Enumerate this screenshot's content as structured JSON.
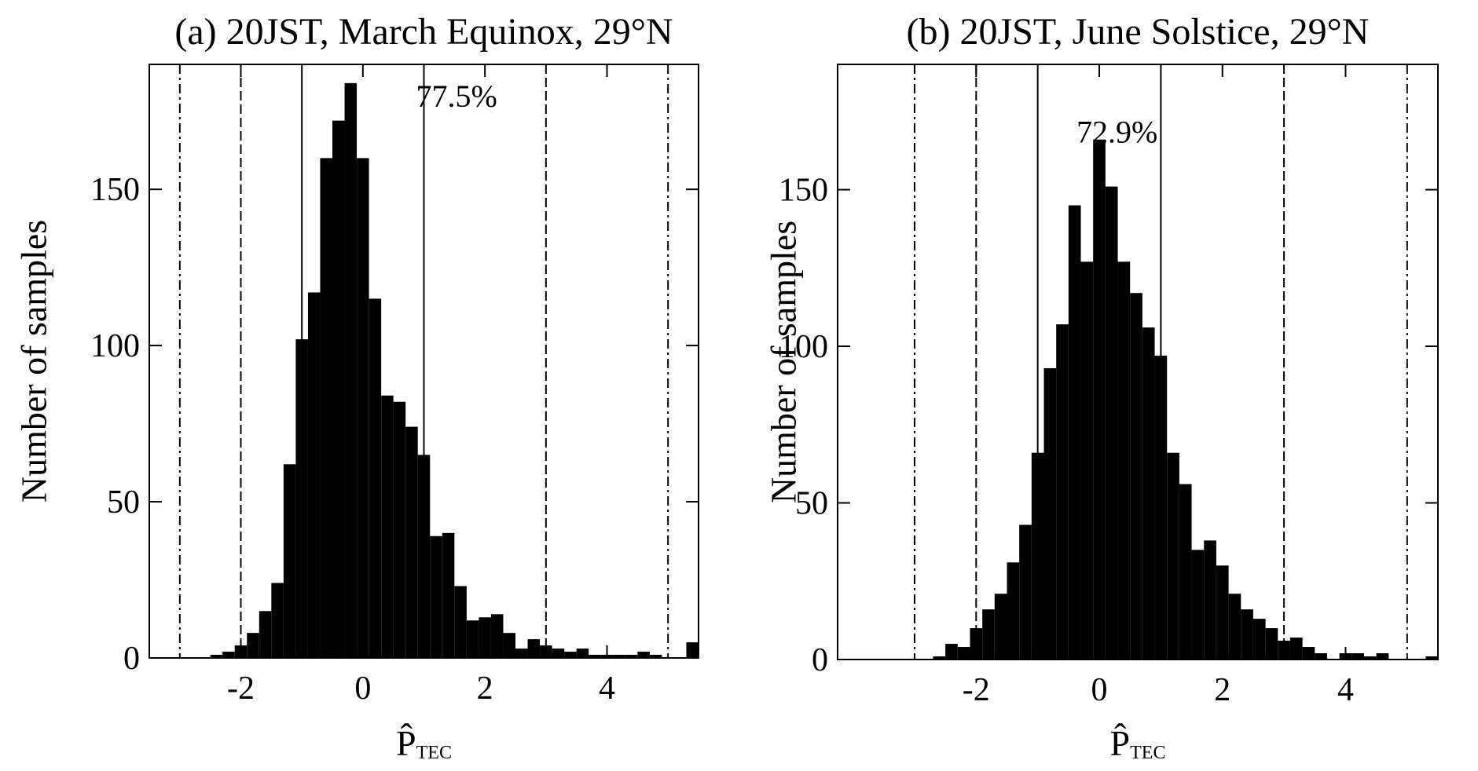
{
  "chart_data": [
    {
      "type": "histogram",
      "title": "(a) 20JST, March Equinox, 29°N",
      "xlabel": "P̂",
      "xlabel_subscript": "TEC",
      "ylabel": "Number of samples",
      "bins": [
        -3.5,
        -3.3,
        -3.1,
        -2.9,
        -2.7,
        -2.5,
        -2.3,
        -2.1,
        -1.9,
        -1.7,
        -1.5,
        -1.3,
        -1.1,
        -0.9,
        -0.7,
        -0.5,
        -0.3,
        -0.1,
        0.1,
        0.3,
        0.5,
        0.7,
        0.9,
        1.1,
        1.3,
        1.5,
        1.7,
        1.9,
        2.1,
        2.3,
        2.5,
        2.7,
        2.9,
        3.1,
        3.3,
        3.5,
        3.7,
        3.9,
        4.1,
        4.3,
        4.5,
        4.7,
        4.9,
        5.1,
        5.3,
        5.5
      ],
      "values": [
        0,
        0,
        0,
        0,
        0,
        1,
        2,
        4,
        8,
        15,
        24,
        62,
        102,
        117,
        160,
        172,
        184,
        160,
        115,
        84,
        82,
        74,
        65,
        39,
        40,
        23,
        12,
        13,
        14,
        8,
        3,
        6,
        4,
        3,
        2,
        3,
        1,
        1,
        1,
        1,
        2,
        1,
        0,
        0,
        5
      ],
      "color": "#000000",
      "xlim": [
        -3.5,
        5.5
      ],
      "xticks": [
        -2,
        0,
        2,
        4
      ],
      "ylim": [
        0,
        190
      ],
      "yticks": [
        0,
        50,
        100,
        150
      ],
      "vlines": [
        {
          "x": -3,
          "style": "dashdot"
        },
        {
          "x": -2,
          "style": "dashed"
        },
        {
          "x": -1,
          "style": "solid"
        },
        {
          "x": 1,
          "style": "solid"
        },
        {
          "x": 3,
          "style": "dashed"
        },
        {
          "x": 5,
          "style": "dashdot"
        }
      ],
      "annotation": "77.5%"
    },
    {
      "type": "histogram",
      "title": "(b) 20JST, June Solstice, 29°N",
      "xlabel": "P̂",
      "xlabel_subscript": "TEC",
      "ylabel": "Number of samples",
      "bins": [
        -2.9,
        -2.7,
        -2.5,
        -2.3,
        -2.1,
        -1.9,
        -1.7,
        -1.5,
        -1.3,
        -1.1,
        -0.9,
        -0.7,
        -0.5,
        -0.3,
        -0.1,
        0.1,
        0.3,
        0.5,
        0.7,
        0.9,
        1.1,
        1.3,
        1.5,
        1.7,
        1.9,
        2.1,
        2.3,
        2.5,
        2.7,
        2.9,
        3.1,
        3.3,
        3.5,
        3.7,
        3.9,
        4.1,
        4.3,
        4.5,
        4.7,
        4.9,
        5.1,
        5.3,
        5.5
      ],
      "values": [
        0,
        1,
        5,
        4,
        10,
        16,
        21,
        31,
        43,
        66,
        93,
        107,
        145,
        127,
        166,
        151,
        127,
        117,
        106,
        97,
        66,
        56,
        35,
        38,
        30,
        21,
        16,
        13,
        10,
        6,
        7,
        4,
        2,
        0,
        2,
        2,
        1,
        2,
        0,
        0,
        0,
        1
      ],
      "color": "#000000",
      "xlim": [
        -4.25,
        5.5
      ],
      "xticks": [
        -2,
        0,
        2,
        4
      ],
      "ylim": [
        0,
        190
      ],
      "yticks": [
        0,
        50,
        100,
        150
      ],
      "vlines": [
        {
          "x": -3,
          "style": "dashdot"
        },
        {
          "x": -2,
          "style": "dashed"
        },
        {
          "x": -1,
          "style": "solid"
        },
        {
          "x": 1,
          "style": "solid"
        },
        {
          "x": 3,
          "style": "dashed"
        },
        {
          "x": 5,
          "style": "dashdot"
        }
      ],
      "annotation": "72.9%"
    }
  ]
}
